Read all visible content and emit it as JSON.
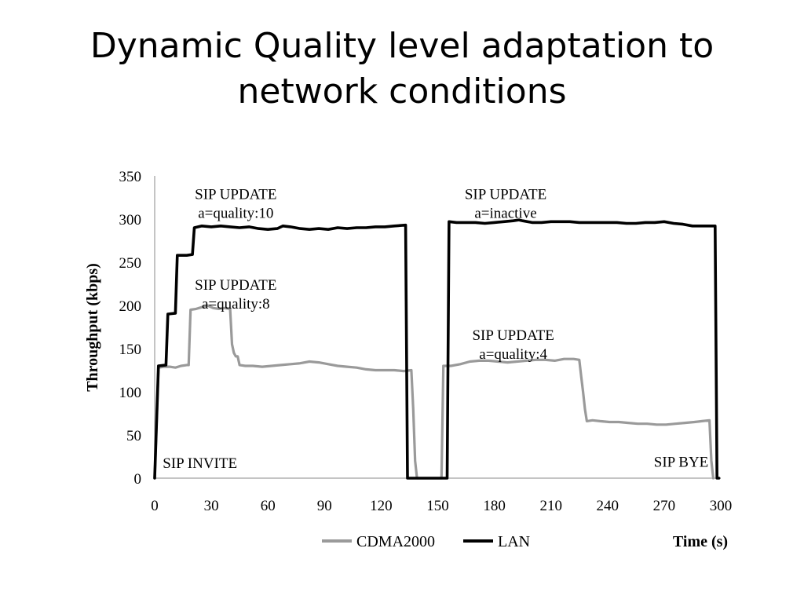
{
  "slide": {
    "title_line1": "Dynamic Quality level adaptation to",
    "title_line2": "network conditions"
  },
  "chart_data": {
    "type": "line",
    "title": "",
    "xlabel": "Time (s)",
    "ylabel": "Throughput (kbps)",
    "xlim": [
      0,
      300
    ],
    "ylim": [
      0,
      350
    ],
    "xticks": [
      0,
      30,
      60,
      90,
      120,
      150,
      180,
      210,
      240,
      270,
      300
    ],
    "yticks": [
      0,
      50,
      100,
      150,
      200,
      250,
      300,
      350
    ],
    "grid": false,
    "legend_position": "bottom",
    "series": [
      {
        "name": "CDMA2000",
        "color": "#9a9a9a",
        "points": [
          [
            0,
            0
          ],
          [
            2,
            128
          ],
          [
            5,
            129
          ],
          [
            8,
            129
          ],
          [
            11,
            128
          ],
          [
            14,
            130
          ],
          [
            17,
            131
          ],
          [
            18,
            131
          ],
          [
            19,
            195
          ],
          [
            22,
            196
          ],
          [
            25,
            198
          ],
          [
            28,
            200
          ],
          [
            31,
            197
          ],
          [
            34,
            196
          ],
          [
            37,
            197
          ],
          [
            40,
            196
          ],
          [
            41,
            155
          ],
          [
            42,
            145
          ],
          [
            43,
            141
          ],
          [
            44,
            141
          ],
          [
            45,
            131
          ],
          [
            48,
            130
          ],
          [
            52,
            130
          ],
          [
            57,
            129
          ],
          [
            62,
            130
          ],
          [
            67,
            131
          ],
          [
            72,
            132
          ],
          [
            77,
            133
          ],
          [
            82,
            135
          ],
          [
            87,
            134
          ],
          [
            92,
            132
          ],
          [
            97,
            130
          ],
          [
            102,
            129
          ],
          [
            107,
            128
          ],
          [
            112,
            126
          ],
          [
            117,
            125
          ],
          [
            122,
            125
          ],
          [
            127,
            125
          ],
          [
            132,
            124
          ],
          [
            136,
            125
          ],
          [
            137,
            80
          ],
          [
            138,
            20
          ],
          [
            139,
            0
          ],
          [
            150,
            0
          ],
          [
            152,
            0
          ],
          [
            153,
            130
          ],
          [
            157,
            130
          ],
          [
            162,
            132
          ],
          [
            167,
            135
          ],
          [
            172,
            136
          ],
          [
            177,
            136
          ],
          [
            182,
            135
          ],
          [
            187,
            134
          ],
          [
            192,
            135
          ],
          [
            197,
            136
          ],
          [
            202,
            137
          ],
          [
            207,
            137
          ],
          [
            212,
            136
          ],
          [
            217,
            138
          ],
          [
            222,
            138
          ],
          [
            225,
            137
          ],
          [
            226,
            118
          ],
          [
            227,
            100
          ],
          [
            228,
            80
          ],
          [
            229,
            66
          ],
          [
            232,
            67
          ],
          [
            236,
            66
          ],
          [
            241,
            65
          ],
          [
            246,
            65
          ],
          [
            251,
            64
          ],
          [
            256,
            63
          ],
          [
            261,
            63
          ],
          [
            266,
            62
          ],
          [
            271,
            62
          ],
          [
            276,
            63
          ],
          [
            281,
            64
          ],
          [
            286,
            65
          ],
          [
            290,
            66
          ],
          [
            294,
            67
          ],
          [
            295,
            20
          ],
          [
            296,
            0
          ]
        ]
      },
      {
        "name": "LAN",
        "color": "#000000",
        "points": [
          [
            0,
            0
          ],
          [
            2,
            130
          ],
          [
            6,
            131
          ],
          [
            7,
            190
          ],
          [
            11,
            191
          ],
          [
            12,
            258
          ],
          [
            17,
            258
          ],
          [
            20,
            259
          ],
          [
            21,
            290
          ],
          [
            25,
            292
          ],
          [
            30,
            291
          ],
          [
            35,
            292
          ],
          [
            40,
            291
          ],
          [
            45,
            290
          ],
          [
            50,
            291
          ],
          [
            55,
            289
          ],
          [
            60,
            288
          ],
          [
            65,
            289
          ],
          [
            68,
            292
          ],
          [
            72,
            291
          ],
          [
            77,
            289
          ],
          [
            82,
            288
          ],
          [
            87,
            289
          ],
          [
            92,
            288
          ],
          [
            97,
            290
          ],
          [
            102,
            289
          ],
          [
            107,
            290
          ],
          [
            112,
            290
          ],
          [
            117,
            291
          ],
          [
            122,
            291
          ],
          [
            127,
            292
          ],
          [
            133,
            293
          ],
          [
            134,
            0
          ],
          [
            147,
            0
          ],
          [
            155,
            0
          ],
          [
            156,
            297
          ],
          [
            160,
            296
          ],
          [
            165,
            296
          ],
          [
            170,
            296
          ],
          [
            175,
            295
          ],
          [
            180,
            296
          ],
          [
            185,
            297
          ],
          [
            190,
            298
          ],
          [
            193,
            299
          ],
          [
            195,
            298
          ],
          [
            200,
            296
          ],
          [
            205,
            296
          ],
          [
            210,
            297
          ],
          [
            215,
            297
          ],
          [
            220,
            297
          ],
          [
            225,
            296
          ],
          [
            230,
            296
          ],
          [
            235,
            296
          ],
          [
            240,
            296
          ],
          [
            245,
            296
          ],
          [
            250,
            295
          ],
          [
            255,
            295
          ],
          [
            260,
            296
          ],
          [
            265,
            296
          ],
          [
            270,
            297
          ],
          [
            275,
            295
          ],
          [
            280,
            294
          ],
          [
            285,
            292
          ],
          [
            290,
            292
          ],
          [
            297,
            292
          ],
          [
            298,
            0
          ],
          [
            299,
            0
          ]
        ]
      }
    ],
    "annotations": [
      {
        "line1": "SIP UPDATE",
        "line2": "a=quality:10",
        "x": 43,
        "y": 323
      },
      {
        "line1": "SIP UPDATE",
        "line2": "a=quality:8",
        "x": 43,
        "y": 218
      },
      {
        "line1": "SIP UPDATE",
        "line2": "a=inactive",
        "x": 186,
        "y": 323
      },
      {
        "line1": "SIP UPDATE",
        "line2": "a=quality:4",
        "x": 190,
        "y": 160
      },
      {
        "line1": "SIP INVITE",
        "line2": "",
        "x": 24,
        "y": 12
      },
      {
        "line1": "SIP BYE",
        "line2": "",
        "x": 279,
        "y": 13
      }
    ]
  }
}
